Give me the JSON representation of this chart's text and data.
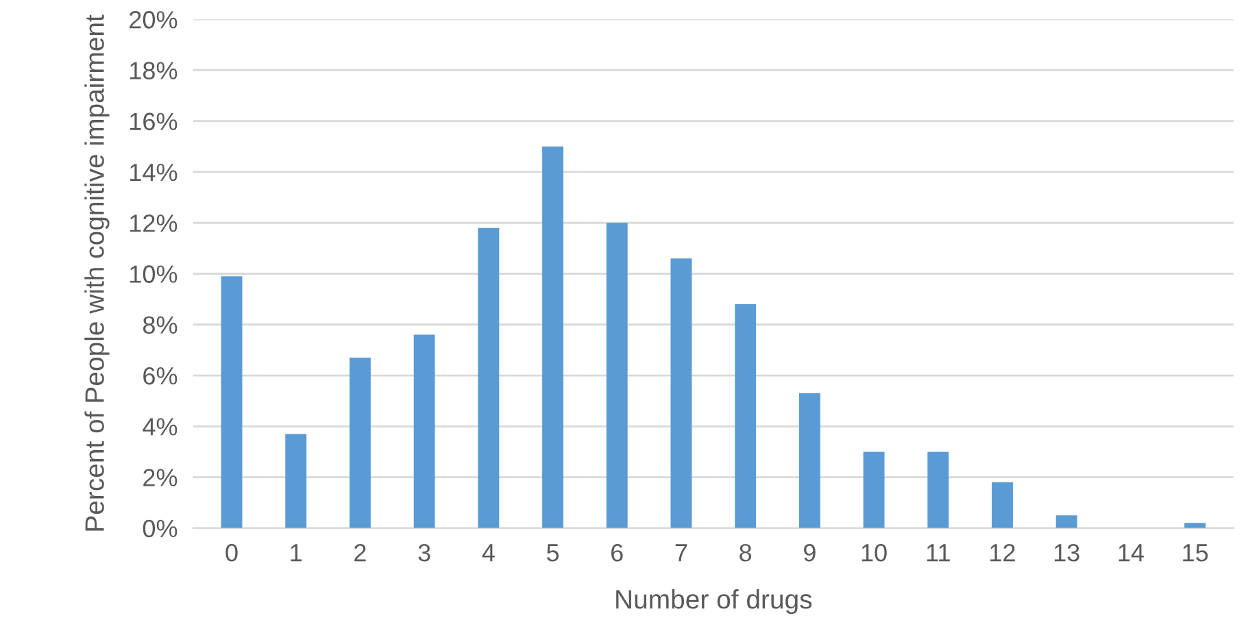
{
  "chart_data": {
    "type": "bar",
    "xlabel": "Number of drugs",
    "ylabel": "Percent of People with cognitive impairment",
    "categories": [
      "0",
      "1",
      "2",
      "3",
      "4",
      "5",
      "6",
      "7",
      "8",
      "9",
      "10",
      "11",
      "12",
      "13",
      "14",
      "15"
    ],
    "values": [
      9.9,
      3.7,
      6.7,
      7.6,
      11.8,
      15.0,
      12.0,
      10.6,
      8.8,
      5.3,
      3.0,
      3.0,
      1.8,
      0.5,
      0,
      0.2
    ],
    "color": "#5b9bd5",
    "ylim": [
      0,
      20
    ],
    "yticks": [
      {
        "value": 0,
        "label": "0%"
      },
      {
        "value": 2,
        "label": "2%"
      },
      {
        "value": 4,
        "label": "4%"
      },
      {
        "value": 6,
        "label": "6%"
      },
      {
        "value": 8,
        "label": "8%"
      },
      {
        "value": 10,
        "label": "10%"
      },
      {
        "value": 12,
        "label": "12%"
      },
      {
        "value": 14,
        "label": "14%"
      },
      {
        "value": 16,
        "label": "16%"
      },
      {
        "value": 18,
        "label": "18%"
      },
      {
        "value": 20,
        "label": "20%"
      }
    ],
    "grid": "y",
    "legend": false
  }
}
